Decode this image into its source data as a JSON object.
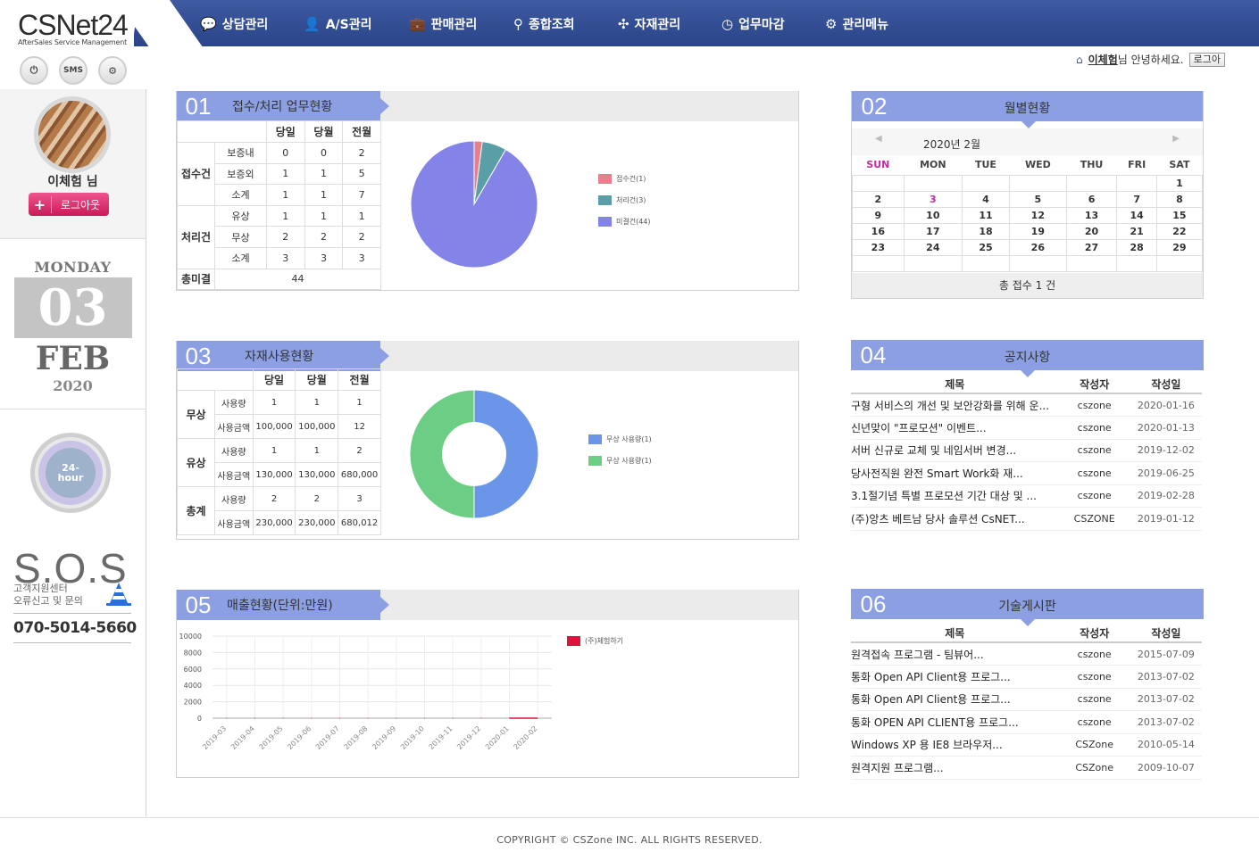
{
  "logo": {
    "name": "CSNet24",
    "tagline": "AfterSales Service Management"
  },
  "quick": {
    "power": "power-icon",
    "sms": "SMS",
    "gear": "gear-icon"
  },
  "nav": [
    {
      "label": "상담관리",
      "icon": "chat-icon"
    },
    {
      "label": "A/S관리",
      "icon": "person-icon"
    },
    {
      "label": "판매관리",
      "icon": "briefcase-icon"
    },
    {
      "label": "종합조회",
      "icon": "search-icon"
    },
    {
      "label": "자재관리",
      "icon": "network-icon"
    },
    {
      "label": "업무마감",
      "icon": "clock-icon"
    },
    {
      "label": "관리메뉴",
      "icon": "gear-icon"
    }
  ],
  "header": {
    "user": "이체험",
    "greeting": "님 안녕하세요.",
    "back": "로그아"
  },
  "sidebar": {
    "user_name": "이체험 님",
    "logout": "로그아웃",
    "day_name": "MONDAY",
    "day": "03",
    "month": "FEB",
    "year": "2020",
    "h24": "24-\nhour",
    "sos": "S.O.S",
    "sos_line1": "고객지원센터",
    "sos_line2": "오류신고 및 문의",
    "phone": "070-5014-5660"
  },
  "p1": {
    "num": "01",
    "title": "접수/처리 업무현황",
    "headers": [
      "당일",
      "당월",
      "전월"
    ],
    "rows": [
      {
        "grp": "접수건",
        "sub": "보증내",
        "v": [
          "0",
          "0",
          "2"
        ]
      },
      {
        "grp": "",
        "sub": "보증외",
        "v": [
          "1",
          "1",
          "5"
        ]
      },
      {
        "grp": "",
        "sub": "소계",
        "v": [
          "1",
          "1",
          "7"
        ]
      },
      {
        "grp": "처리건",
        "sub": "유상",
        "v": [
          "1",
          "1",
          "1"
        ]
      },
      {
        "grp": "",
        "sub": "무상",
        "v": [
          "2",
          "2",
          "2"
        ]
      },
      {
        "grp": "",
        "sub": "소계",
        "v": [
          "3",
          "3",
          "3"
        ]
      }
    ],
    "total_label": "총미결",
    "total": "44",
    "legend": [
      "접수건(1)",
      "처리건(3)",
      "미결건(44)"
    ]
  },
  "chart_data": [
    {
      "type": "pie",
      "values": [
        1,
        3,
        44
      ],
      "labels": [
        "접수건(1)",
        "처리건(3)",
        "미결건(44)"
      ],
      "colors": [
        "#e87f8c",
        "#5a9ea8",
        "#8484e8"
      ]
    },
    {
      "type": "pie",
      "values": [
        1,
        1
      ],
      "labels": [
        "무상 사용량(1)",
        "무상 사용량(1)"
      ],
      "colors": [
        "#6b95e8",
        "#6cce85"
      ],
      "donut": true
    },
    {
      "type": "line",
      "categories": [
        "2019-03",
        "2019-04",
        "2019-05",
        "2019-06",
        "2019-07",
        "2019-08",
        "2019-09",
        "2019-10",
        "2019-11",
        "2019-12",
        "2020-01",
        "2020-02"
      ],
      "series": [
        {
          "name": "(주)체험하기",
          "values": [
            0,
            0,
            0,
            0,
            0,
            0,
            0,
            0,
            0,
            0,
            0,
            0
          ],
          "color": "#dc143c"
        }
      ],
      "yticks": [
        "10000",
        "8000",
        "6000",
        "4000",
        "2000",
        "0"
      ],
      "ylim": [
        0,
        10000
      ],
      "grid": true,
      "legend": "top-right"
    }
  ],
  "p2": {
    "num": "02",
    "title": "월별현황",
    "month": "2020년 2월",
    "days": [
      "SUN",
      "MON",
      "TUE",
      "WED",
      "THU",
      "FRI",
      "SAT"
    ],
    "weeks": [
      [
        "",
        "",
        "",
        "",
        "",
        "",
        "1"
      ],
      [
        "2",
        "3",
        "4",
        "5",
        "6",
        "7",
        "8"
      ],
      [
        "9",
        "10",
        "11",
        "12",
        "13",
        "14",
        "15"
      ],
      [
        "16",
        "17",
        "18",
        "19",
        "20",
        "21",
        "22"
      ],
      [
        "23",
        "24",
        "25",
        "26",
        "27",
        "28",
        "29"
      ],
      [
        "",
        "",
        "",
        "",
        "",
        "",
        ""
      ]
    ],
    "total": "총 접수 1 건"
  },
  "p3": {
    "num": "03",
    "title": "자재사용현황",
    "headers": [
      "당일",
      "당월",
      "전월"
    ],
    "rows": [
      {
        "grp": "무상",
        "sub": "사용량",
        "v": [
          "1",
          "1",
          "1"
        ]
      },
      {
        "grp": "",
        "sub": "사용금액",
        "v": [
          "100,000",
          "100,000",
          "12"
        ]
      },
      {
        "grp": "유상",
        "sub": "사용량",
        "v": [
          "1",
          "1",
          "2"
        ]
      },
      {
        "grp": "",
        "sub": "사용금액",
        "v": [
          "130,000",
          "130,000",
          "680,000"
        ]
      },
      {
        "grp": "총계",
        "sub": "사용량",
        "v": [
          "2",
          "2",
          "3"
        ]
      },
      {
        "grp": "",
        "sub": "사용금액",
        "v": [
          "230,000",
          "230,000",
          "680,012"
        ]
      }
    ],
    "legend": [
      "무상 사용량(1)",
      "무상 사용량(1)"
    ]
  },
  "p4": {
    "num": "04",
    "title": "공지사항",
    "cols": [
      "제목",
      "작성자",
      "작성일"
    ],
    "rows": [
      [
        "구형 서비스의 개선 및 보안강화를 위해 운...",
        "cszone",
        "2020-01-16"
      ],
      [
        "신년맞이 \"프로모션\" 이벤트...",
        "cszone",
        "2020-01-13"
      ],
      [
        "서버 신규로 교체 및 네임서버 변경...",
        "cszone",
        "2019-12-02"
      ],
      [
        "당사전직원 완전 Smart Work화 재...",
        "cszone",
        "2019-06-25"
      ],
      [
        "3.1절기념 특별 프로모션 기간 대상 및 ...",
        "cszone",
        "2019-02-28"
      ],
      [
        "(주)앙츠 베트남 당사 솔루션 CsNET...",
        "CSZONE",
        "2019-01-12"
      ]
    ]
  },
  "p5": {
    "num": "05",
    "title": "매출현황(단위:만원)",
    "legend": "(주)체험하기"
  },
  "p6": {
    "num": "06",
    "title": "기술게시판",
    "cols": [
      "제목",
      "작성자",
      "작성일"
    ],
    "rows": [
      [
        "원격접속 프로그램 - 팀뷰어...",
        "cszone",
        "2015-07-09"
      ],
      [
        "통화 Open API Client용 프로그...",
        "cszone",
        "2013-07-02"
      ],
      [
        "통화 Open API Client용 프로그...",
        "cszone",
        "2013-07-02"
      ],
      [
        "통화 OPEN API CLIENT용 프로그...",
        "cszone",
        "2013-07-02"
      ],
      [
        "Windows XP 용 IE8 브라우저...",
        "CSZone",
        "2010-05-14"
      ],
      [
        "원격지원 프로그램...",
        "CSZone",
        "2009-10-07"
      ]
    ]
  },
  "footer": "COPYRIGHT © CSZone INC. ALL RIGHTS RESERVED."
}
